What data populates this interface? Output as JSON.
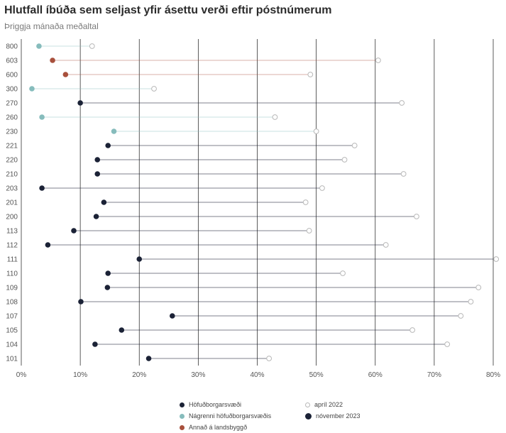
{
  "title": "Hlutfall íbúða sem seljast yfir ásettu verði eftir póstnúmerum",
  "subtitle": "Þriggja mánaða meðaltal",
  "colors": {
    "hofudborgarsvaedi": "#1b2236",
    "nagrenni": "#86bcbc",
    "annad": "#a8503c",
    "gridline": "#333333",
    "april_marker": "#b8b8b8"
  },
  "chart_data": {
    "type": "dumbbell",
    "title": "Hlutfall íbúða sem seljast yfir ásettu verði eftir póstnúmerum",
    "subtitle": "Þriggja mánaða meðaltal",
    "xlabel": "",
    "ylabel": "",
    "xlim": [
      0,
      80
    ],
    "x_ticks": [
      "0%",
      "10%",
      "20%",
      "30%",
      "40%",
      "50%",
      "60%",
      "70%",
      "80%"
    ],
    "grid": "vertical",
    "legend_position": "bottom",
    "legend": {
      "regions": [
        "Höfuðborgarsvæði",
        "Nágrenni höfuðborgarsvæðis",
        "Annað á landsbyggð"
      ],
      "periods": [
        "apríl 2022",
        "nóvember 2023"
      ]
    },
    "rows": [
      {
        "postnumer": "800",
        "region": "nagrenni",
        "apr_2022": 12,
        "nov_2023": 3
      },
      {
        "postnumer": "603",
        "region": "annad",
        "apr_2022": 60.5,
        "nov_2023": 5.3
      },
      {
        "postnumer": "600",
        "region": "annad",
        "apr_2022": 49,
        "nov_2023": 7.5
      },
      {
        "postnumer": "300",
        "region": "nagrenni",
        "apr_2022": 22.5,
        "nov_2023": 1.8
      },
      {
        "postnumer": "270",
        "region": "hofudborgarsvaedi",
        "apr_2022": 64.5,
        "nov_2023": 10
      },
      {
        "postnumer": "260",
        "region": "nagrenni",
        "apr_2022": 43,
        "nov_2023": 3.5
      },
      {
        "postnumer": "230",
        "region": "nagrenni",
        "apr_2022": 50,
        "nov_2023": 15.7
      },
      {
        "postnumer": "221",
        "region": "hofudborgarsvaedi",
        "apr_2022": 56.5,
        "nov_2023": 14.7
      },
      {
        "postnumer": "220",
        "region": "hofudborgarsvaedi",
        "apr_2022": 54.8,
        "nov_2023": 12.9
      },
      {
        "postnumer": "210",
        "region": "hofudborgarsvaedi",
        "apr_2022": 64.8,
        "nov_2023": 12.9
      },
      {
        "postnumer": "203",
        "region": "hofudborgarsvaedi",
        "apr_2022": 51,
        "nov_2023": 3.5
      },
      {
        "postnumer": "201",
        "region": "hofudborgarsvaedi",
        "apr_2022": 48.2,
        "nov_2023": 14
      },
      {
        "postnumer": "200",
        "region": "hofudborgarsvaedi",
        "apr_2022": 67,
        "nov_2023": 12.7
      },
      {
        "postnumer": "113",
        "region": "hofudborgarsvaedi",
        "apr_2022": 48.8,
        "nov_2023": 8.9
      },
      {
        "postnumer": "112",
        "region": "hofudborgarsvaedi",
        "apr_2022": 61.8,
        "nov_2023": 4.5
      },
      {
        "postnumer": "111",
        "region": "hofudborgarsvaedi",
        "apr_2022": 80.5,
        "nov_2023": 20
      },
      {
        "postnumer": "110",
        "region": "hofudborgarsvaedi",
        "apr_2022": 54.5,
        "nov_2023": 14.7
      },
      {
        "postnumer": "109",
        "region": "hofudborgarsvaedi",
        "apr_2022": 77.5,
        "nov_2023": 14.6
      },
      {
        "postnumer": "108",
        "region": "hofudborgarsvaedi",
        "apr_2022": 76.2,
        "nov_2023": 10.1
      },
      {
        "postnumer": "107",
        "region": "hofudborgarsvaedi",
        "apr_2022": 74.5,
        "nov_2023": 25.6
      },
      {
        "postnumer": "105",
        "region": "hofudborgarsvaedi",
        "apr_2022": 66.3,
        "nov_2023": 17
      },
      {
        "postnumer": "104",
        "region": "hofudborgarsvaedi",
        "apr_2022": 72.2,
        "nov_2023": 12.5
      },
      {
        "postnumer": "101",
        "region": "hofudborgarsvaedi",
        "apr_2022": 42,
        "nov_2023": 21.6
      }
    ]
  }
}
